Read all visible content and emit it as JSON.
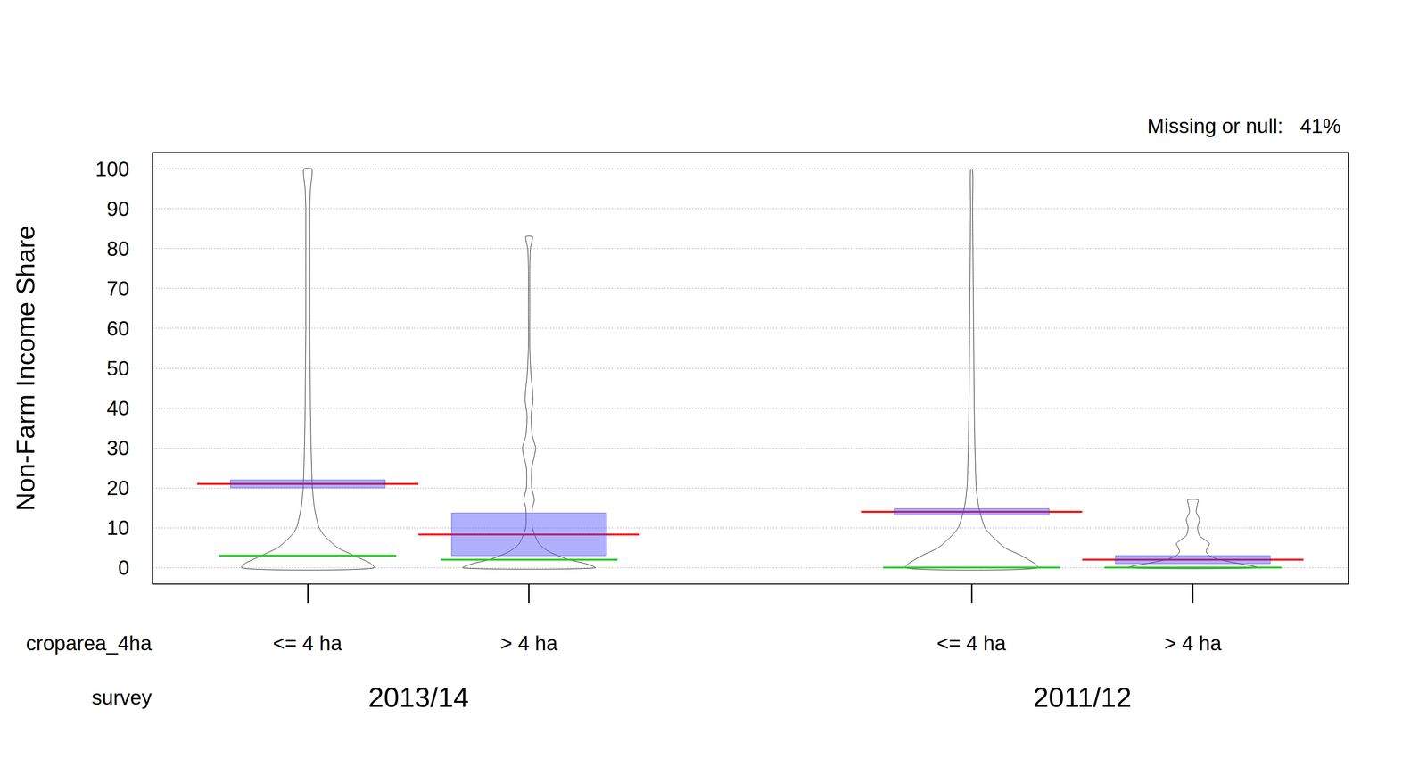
{
  "chart_data": {
    "type": "box",
    "annotation": "Missing or null:   41%",
    "y_label": "Non-Farm Income Share",
    "x_levels": [
      "croparea_4ha",
      "survey"
    ],
    "groups": [
      {
        "survey": "2013/14",
        "croparea_4ha": "<= 4 ha",
        "mean": 21,
        "box": [
          20,
          22
        ],
        "median": 3,
        "density_y": [
          0,
          1,
          3,
          5,
          8,
          10,
          15,
          20,
          30,
          40,
          50,
          60,
          70,
          80,
          90,
          95,
          100
        ],
        "density": [
          1,
          0.95,
          0.7,
          0.45,
          0.25,
          0.17,
          0.1,
          0.07,
          0.05,
          0.04,
          0.035,
          0.03,
          0.03,
          0.03,
          0.03,
          0.04,
          0.06
        ]
      },
      {
        "survey": "2013/14",
        "croparea_4ha": "> 4 ha",
        "mean": 8.3,
        "box": [
          3,
          13.7
        ],
        "median": 2,
        "density_y": [
          0,
          1,
          2,
          4,
          6,
          10,
          15,
          17,
          20,
          25,
          28,
          30,
          33,
          38,
          42,
          45,
          48,
          55,
          65,
          75,
          80,
          83
        ],
        "density": [
          1,
          0.85,
          0.6,
          0.3,
          0.15,
          0.05,
          0.05,
          0.08,
          0.04,
          0.04,
          0.08,
          0.1,
          0.05,
          0.03,
          0.06,
          0.05,
          0.03,
          0.01,
          0.01,
          0.01,
          0.02,
          0.05
        ]
      },
      {
        "survey": "2011/12",
        "croparea_4ha": "<= 4 ha",
        "mean": 14,
        "box": [
          13.2,
          14.8
        ],
        "median": 0,
        "density_y": [
          0,
          1,
          3,
          5,
          8,
          10,
          15,
          20,
          30,
          40,
          50,
          60,
          70,
          80,
          90,
          100
        ],
        "density": [
          1,
          0.95,
          0.75,
          0.5,
          0.3,
          0.2,
          0.11,
          0.07,
          0.05,
          0.04,
          0.035,
          0.03,
          0.025,
          0.02,
          0.015,
          0.01
        ]
      },
      {
        "survey": "2011/12",
        "croparea_4ha": "> 4 ha",
        "mean": 2,
        "box": [
          1,
          3
        ],
        "median": 0,
        "density_y": [
          0,
          1,
          2,
          3,
          4,
          5,
          6,
          7,
          8,
          10,
          12,
          14,
          16,
          17
        ],
        "density": [
          1,
          0.7,
          0.4,
          0.25,
          0.2,
          0.22,
          0.25,
          0.18,
          0.1,
          0.07,
          0.1,
          0.05,
          0.07,
          0.08
        ]
      }
    ],
    "ylim": [
      -4,
      104
    ],
    "yticks": [
      0,
      10,
      20,
      30,
      40,
      50,
      60,
      70,
      80,
      90,
      100
    ],
    "grid": true
  }
}
